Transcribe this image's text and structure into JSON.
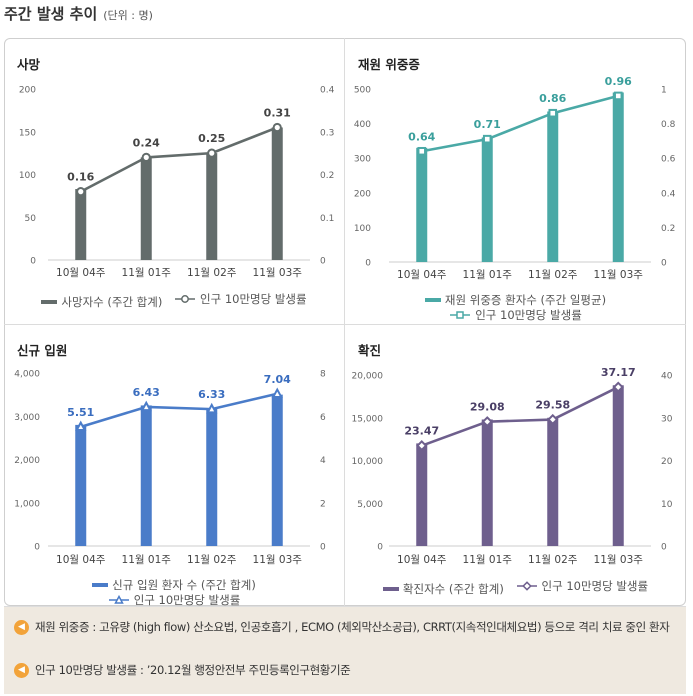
{
  "heading": {
    "title": "주간 발생 추이",
    "unit": "(단위 : 명)"
  },
  "chart_data": [
    {
      "type": "bar+line",
      "title": "사망",
      "categories": [
        "10월 04주",
        "11월 01주",
        "11월 02주",
        "11월 03주"
      ],
      "bar_series": {
        "name": "사망자수 (주간 합계)",
        "values": [
          83,
          120,
          125,
          155
        ],
        "color": "#636c6b"
      },
      "line_series": {
        "name": "인구 10만명당 발생률",
        "values": [
          0.16,
          0.24,
          0.25,
          0.31
        ],
        "labels": [
          "0.16",
          "0.24",
          "0.25",
          "0.31"
        ],
        "color": "#636c6b",
        "label_color": "#444444"
      },
      "y_left": {
        "min": 0,
        "max": 200,
        "ticks": [
          "0",
          "50",
          "100",
          "150",
          "200"
        ]
      },
      "y_right": {
        "min": 0,
        "max": 0.4,
        "ticks": [
          "0",
          "0.1",
          "0.2",
          "0.3",
          "0.4"
        ]
      },
      "marker": "circle"
    },
    {
      "type": "bar+line",
      "title": "재원 위중증",
      "categories": [
        "10월 04주",
        "11월 01주",
        "11월 02주",
        "11월 03주"
      ],
      "bar_series": {
        "name": "재원 위중증 환자수 (주간 일평균)",
        "values": [
          330,
          360,
          435,
          490
        ],
        "color": "#4aa9a6"
      },
      "line_series": {
        "name": "인구 10만명당 발생률",
        "values": [
          0.64,
          0.71,
          0.86,
          0.96
        ],
        "labels": [
          "0.64",
          "0.71",
          "0.86",
          "0.96"
        ],
        "color": "#4aa9a6",
        "label_color": "#3a9f9c"
      },
      "y_left": {
        "min": 0,
        "max": 500,
        "ticks": [
          "0",
          "100",
          "200",
          "300",
          "400",
          "500"
        ]
      },
      "y_right": {
        "min": 0,
        "max": 1,
        "ticks": [
          "0",
          "0.2",
          "0.4",
          "0.6",
          "0.8",
          "1"
        ]
      },
      "marker": "square"
    },
    {
      "type": "bar+line",
      "title": "신규 입원",
      "categories": [
        "10월 04주",
        "11월 01주",
        "11월 02주",
        "11월 03주"
      ],
      "bar_series": {
        "name": "신규 입원 환자 수 (주간 합계)",
        "values": [
          2800,
          3250,
          3180,
          3500
        ],
        "color": "#4a7cc9"
      },
      "line_series": {
        "name": "인구 10만명당 발생률",
        "values": [
          5.51,
          6.43,
          6.33,
          7.04
        ],
        "labels": [
          "5.51",
          "6.43",
          "6.33",
          "7.04"
        ],
        "color": "#4a7cc9",
        "label_color": "#3a6dbf"
      },
      "y_left": {
        "min": 0,
        "max": 4000,
        "ticks": [
          "0",
          "1,000",
          "2,000",
          "3,000",
          "4,000"
        ]
      },
      "y_right": {
        "min": 0,
        "max": 8,
        "ticks": [
          "0",
          "2",
          "4",
          "6",
          "8"
        ]
      },
      "marker": "triangle"
    },
    {
      "type": "bar+line",
      "title": "확진",
      "categories": [
        "10월 04주",
        "11월 01주",
        "11월 02주",
        "11월 03주"
      ],
      "bar_series": {
        "name": "확진자수 (주간 합계)",
        "values": [
          12000,
          14800,
          15000,
          18800
        ],
        "color": "#6e5f8d"
      },
      "line_series": {
        "name": "인구 10만명당 발생률",
        "values": [
          23.47,
          29.08,
          29.58,
          37.17
        ],
        "labels": [
          "23.47",
          "29.08",
          "29.58",
          "37.17"
        ],
        "color": "#6e5f8d",
        "label_color": "#4a3f66"
      },
      "y_left": {
        "min": 0,
        "max": 20000,
        "ticks": [
          "0",
          "5,000",
          "10,000",
          "15,000",
          "20,000"
        ]
      },
      "y_right": {
        "min": 0,
        "max": 40,
        "ticks": [
          "0",
          "10",
          "20",
          "30",
          "40"
        ]
      },
      "marker": "diamond"
    }
  ],
  "notes": [
    {
      "icon": "speaker-icon",
      "text": "재원 위중증 : 고유량 (high flow) 산소요법, 인공호흡기 , ECMO (체외막산소공급), CRRT(지속적인대체요법) 등으로 격리 치료 중인 환자"
    },
    {
      "icon": "speaker-icon",
      "text": "인구 10만명당 발생률 : ’20.12월 행정안전부 주민등록인구현황기준"
    }
  ]
}
